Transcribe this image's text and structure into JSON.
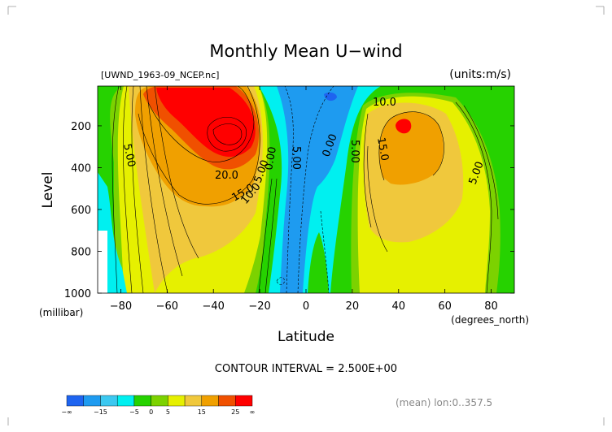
{
  "chart_data": {
    "type": "contour",
    "title": "Monthly Mean U−wind",
    "file_label": "[UWND_1963-09_NCEP.nc]",
    "units_label": "(units:m/s)",
    "xlabel": "Latitude",
    "x_units_label": "(degrees_north)",
    "ylabel": "Level",
    "y_units_label": "(millibar)",
    "xlim": [
      -90,
      90
    ],
    "ylim": [
      1000,
      10
    ],
    "x_ticks": [
      -80,
      -60,
      -40,
      -20,
      0,
      20,
      40,
      60,
      80
    ],
    "x_tick_labels": [
      "−80",
      "−60",
      "−40",
      "−20",
      "0",
      "20",
      "40",
      "60",
      "80"
    ],
    "y_ticks": [
      200,
      400,
      600,
      800,
      1000
    ],
    "y_tick_labels": [
      "200",
      "400",
      "600",
      "800",
      "1000"
    ],
    "contour_interval_label": "CONTOUR INTERVAL = 2.500E+00",
    "contour_labels": [
      "5.00",
      "20.0",
      "15.0",
      "10.0",
      "5.00",
      "0.00",
      "5.00",
      "0.00",
      "5.00",
      "10.0",
      "15.0",
      "5.00"
    ],
    "jets": [
      {
        "lat": -30,
        "level": 200,
        "max_approx": 32.5
      },
      {
        "lat": 42,
        "level": 200,
        "max_approx": 27.5
      }
    ],
    "grid": false,
    "colorbar": {
      "levels": [
        -20,
        -15,
        -10,
        -5,
        0,
        5,
        10,
        15,
        20,
        25,
        30
      ],
      "tick_labels": [
        "−∞",
        "−15",
        "−5",
        "0",
        "5",
        "15",
        "25",
        "∞"
      ],
      "colors": [
        "#1e64f0",
        "#1e9bf0",
        "#3cc8f0",
        "#00f0f0",
        "#26d200",
        "#7cd200",
        "#e6f000",
        "#f0c83c",
        "#f0a000",
        "#f05000",
        "#ff0000"
      ]
    },
    "footer_label": "(mean) lon:0..357.5"
  }
}
